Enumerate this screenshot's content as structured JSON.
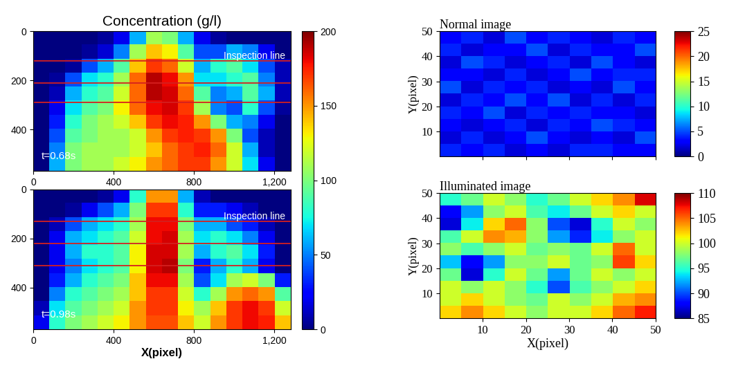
{
  "chart_data": [
    {
      "type": "heatmap",
      "title": "Concentration (g/l)",
      "annotation": "t=0.68s",
      "color": "jet",
      "xlim": [
        0,
        1280
      ],
      "ylim": [
        570,
        0
      ],
      "xticks": [
        0,
        400,
        800,
        {
          "value": 1200,
          "label": "1,200"
        }
      ],
      "yticks": [
        0,
        200,
        400
      ],
      "inspection_lines": {
        "label": "Inspection line",
        "y": [
          120,
          210,
          290
        ]
      },
      "colorbar": {
        "range": [
          0,
          200
        ],
        "ticks": [
          0,
          50,
          100,
          150,
          200
        ]
      },
      "cells": [
        [
          0,
          0,
          0,
          0,
          5,
          20,
          60,
          110,
          100,
          60,
          20,
          5,
          0,
          0,
          0,
          0
        ],
        [
          0,
          0,
          0,
          5,
          15,
          50,
          110,
          140,
          130,
          90,
          40,
          40,
          60,
          50,
          20,
          0
        ],
        [
          0,
          0,
          5,
          40,
          60,
          90,
          140,
          170,
          160,
          120,
          60,
          80,
          90,
          70,
          40,
          10
        ],
        [
          0,
          5,
          40,
          70,
          80,
          110,
          160,
          190,
          180,
          150,
          70,
          70,
          80,
          90,
          50,
          10
        ],
        [
          0,
          10,
          60,
          80,
          90,
          120,
          160,
          190,
          185,
          160,
          90,
          50,
          60,
          90,
          60,
          10
        ],
        [
          0,
          20,
          70,
          90,
          100,
          130,
          160,
          180,
          185,
          170,
          110,
          50,
          40,
          80,
          40,
          5
        ],
        [
          0,
          30,
          80,
          100,
          110,
          120,
          140,
          170,
          180,
          175,
          150,
          100,
          60,
          50,
          20,
          0
        ],
        [
          0,
          40,
          90,
          100,
          110,
          110,
          120,
          150,
          170,
          175,
          170,
          150,
          100,
          40,
          10,
          0
        ],
        [
          0,
          50,
          100,
          110,
          110,
          110,
          120,
          140,
          160,
          170,
          175,
          160,
          120,
          60,
          10,
          0
        ],
        [
          0,
          60,
          100,
          110,
          110,
          120,
          130,
          150,
          160,
          170,
          170,
          150,
          120,
          70,
          20,
          0
        ]
      ]
    },
    {
      "type": "heatmap",
      "annotation": "t=0.98s",
      "x_label": "X(pixel)",
      "color": "jet",
      "xlim": [
        0,
        1280
      ],
      "ylim": [
        570,
        0
      ],
      "xticks": [
        0,
        400,
        800,
        {
          "value": 1200,
          "label": "1,200"
        }
      ],
      "yticks": [
        0,
        200,
        400
      ],
      "inspection_lines": {
        "label": "Inspection line",
        "y": [
          130,
          220,
          310
        ]
      },
      "colorbar": {
        "range": [
          0,
          200
        ],
        "ticks": [
          0,
          50,
          100,
          150,
          200
        ]
      },
      "cells": [
        [
          0,
          0,
          0,
          0,
          5,
          20,
          80,
          150,
          150,
          60,
          10,
          0,
          0,
          0,
          0,
          0
        ],
        [
          0,
          0,
          5,
          20,
          40,
          60,
          100,
          170,
          170,
          80,
          30,
          30,
          20,
          10,
          0,
          0
        ],
        [
          0,
          10,
          40,
          60,
          70,
          80,
          110,
          180,
          180,
          100,
          60,
          60,
          40,
          30,
          10,
          0
        ],
        [
          0,
          20,
          60,
          70,
          80,
          90,
          120,
          180,
          185,
          110,
          70,
          80,
          70,
          50,
          20,
          0
        ],
        [
          0,
          20,
          60,
          80,
          80,
          90,
          130,
          185,
          185,
          110,
          60,
          80,
          90,
          70,
          30,
          0
        ],
        [
          0,
          20,
          50,
          70,
          80,
          90,
          130,
          185,
          190,
          100,
          30,
          60,
          80,
          60,
          20,
          0
        ],
        [
          0,
          30,
          60,
          80,
          90,
          100,
          140,
          180,
          180,
          110,
          40,
          70,
          110,
          120,
          100,
          30
        ],
        [
          0,
          50,
          80,
          90,
          100,
          110,
          140,
          170,
          170,
          120,
          80,
          110,
          150,
          160,
          150,
          90
        ],
        [
          10,
          70,
          90,
          100,
          110,
          120,
          150,
          170,
          170,
          130,
          110,
          140,
          170,
          180,
          170,
          120
        ],
        [
          20,
          80,
          100,
          110,
          120,
          130,
          150,
          165,
          165,
          140,
          120,
          150,
          170,
          180,
          175,
          140
        ]
      ]
    },
    {
      "type": "heatmap",
      "title": "Normal image",
      "y_label": "Y(pixel)",
      "color": "jet",
      "tick_labels": "y",
      "xlim": [
        0,
        50
      ],
      "ylim": [
        0,
        50
      ],
      "xticks": [
        10,
        20,
        30,
        40,
        50
      ],
      "yticks": [
        10,
        20,
        30,
        40,
        50
      ],
      "colorbar": {
        "range": [
          0,
          25
        ],
        "ticks": [
          0,
          5,
          10,
          15,
          20,
          25
        ]
      },
      "cells": [
        [
          3,
          4,
          2,
          5,
          3,
          4,
          3,
          2,
          4,
          3
        ],
        [
          4,
          2,
          3,
          3,
          5,
          2,
          4,
          3,
          3,
          5
        ],
        [
          2,
          5,
          4,
          2,
          3,
          4,
          2,
          5,
          3,
          2
        ],
        [
          3,
          3,
          2,
          4,
          2,
          3,
          5,
          3,
          4,
          4
        ],
        [
          5,
          2,
          4,
          3,
          4,
          2,
          3,
          2,
          5,
          3
        ],
        [
          2,
          4,
          3,
          5,
          3,
          5,
          2,
          4,
          2,
          4
        ],
        [
          4,
          3,
          5,
          2,
          4,
          3,
          4,
          3,
          3,
          2
        ],
        [
          3,
          2,
          3,
          4,
          2,
          4,
          3,
          5,
          4,
          3
        ],
        [
          2,
          4,
          2,
          3,
          5,
          3,
          2,
          3,
          2,
          5
        ],
        [
          4,
          3,
          4,
          2,
          3,
          2,
          4,
          4,
          3,
          3
        ]
      ]
    },
    {
      "type": "heatmap",
      "title": "Illuminated image",
      "x_label": "X(pixel)",
      "y_label": "Y(pixel)",
      "color": "jet",
      "xlim": [
        0,
        50
      ],
      "ylim": [
        0,
        50
      ],
      "xticks": [
        10,
        20,
        30,
        40,
        50
      ],
      "yticks": [
        10,
        20,
        30,
        40,
        50
      ],
      "colorbar": {
        "range": [
          85,
          110
        ],
        "ticks": [
          85,
          90,
          95,
          100,
          105,
          110
        ]
      },
      "cells": [
        [
          95,
          97,
          100,
          98,
          95,
          97,
          100,
          102,
          104,
          108
        ],
        [
          88,
          92,
          98,
          100,
          96,
          94,
          97,
          100,
          102,
          100
        ],
        [
          87,
          94,
          102,
          105,
          98,
          90,
          87,
          95,
          100,
          98
        ],
        [
          96,
          100,
          104,
          103,
          98,
          92,
          89,
          94,
          98,
          100
        ],
        [
          98,
          96,
          98,
          100,
          97,
          98,
          97,
          100,
          105,
          100
        ],
        [
          93,
          88,
          92,
          98,
          98,
          100,
          97,
          98,
          106,
          102
        ],
        [
          97,
          87,
          95,
          100,
          97,
          92,
          97,
          100,
          98,
          100
        ],
        [
          100,
          98,
          100,
          98,
          95,
          90,
          96,
          98,
          100,
          102
        ],
        [
          100,
          102,
          100,
          98,
          97,
          100,
          98,
          100,
          103,
          104
        ],
        [
          102,
          104,
          102,
          100,
          98,
          100,
          100,
          102,
          105,
          107
        ]
      ]
    }
  ]
}
